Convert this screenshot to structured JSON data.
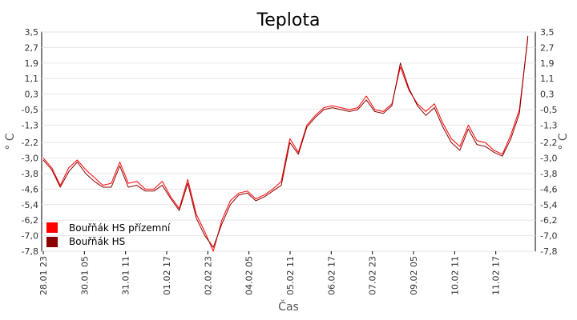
{
  "chart_data": {
    "type": "line",
    "title": "Teplota",
    "xlabel": "Čas",
    "ylabel_left": "° C",
    "ylabel_right": "° C",
    "ylim": [
      -7.8,
      3.5
    ],
    "yticks": [
      "3,5",
      "2,7",
      "1,9",
      "1,1",
      "0,3",
      "-0,5",
      "-1,3",
      "-2,2",
      "-3,0",
      "-3,8",
      "-4,6",
      "-5,4",
      "-6,2",
      "-7,0",
      "-7,8"
    ],
    "ytick_values": [
      3.5,
      2.7,
      1.9,
      1.1,
      0.3,
      -0.5,
      -1.3,
      -2.2,
      -3.0,
      -3.8,
      -4.6,
      -5.4,
      -6.2,
      -7.0,
      -7.8
    ],
    "xticks": [
      "28.01 23",
      "30.01 05",
      "31.01 11",
      "01.02 17",
      "02.02 23",
      "04.02 05",
      "05.02 11",
      "06.02 17",
      "07.02 23",
      "09.02 05",
      "10.02 11",
      "11.02 17"
    ],
    "grid": true,
    "legend_position": "bottom-left",
    "series": [
      {
        "name": "Bouřňák HS přízemní",
        "color": "#ff0000",
        "x": [
          0,
          0.2,
          0.4,
          0.6,
          0.8,
          1.0,
          1.2,
          1.4,
          1.6,
          1.8,
          2.0,
          2.2,
          2.4,
          2.6,
          2.8,
          3.0,
          3.2,
          3.4,
          3.6,
          3.8,
          4.0,
          4.2,
          4.4,
          4.6,
          4.8,
          5.0,
          5.2,
          5.4,
          5.6,
          5.8,
          6.0,
          6.2,
          6.4,
          6.6,
          6.8,
          7.0,
          7.2,
          7.4,
          7.6,
          7.8,
          8.0,
          8.2,
          8.4,
          8.6,
          8.8,
          9.0,
          9.2,
          9.4,
          9.6,
          9.8,
          10.0,
          10.2,
          10.4,
          10.6,
          10.8,
          11.0,
          11.2,
          11.4
        ],
        "values": [
          -3.0,
          -3.5,
          -4.4,
          -3.5,
          -3.1,
          -3.6,
          -4.0,
          -4.4,
          -4.3,
          -3.2,
          -4.3,
          -4.2,
          -4.6,
          -4.6,
          -4.2,
          -5.0,
          -5.6,
          -4.1,
          -5.9,
          -6.8,
          -7.8,
          -6.2,
          -5.2,
          -4.8,
          -4.7,
          -5.1,
          -4.9,
          -4.6,
          -4.2,
          -2.0,
          -2.7,
          -1.3,
          -0.8,
          -0.4,
          -0.3,
          -0.4,
          -0.5,
          -0.4,
          0.2,
          -0.5,
          -0.6,
          -0.2,
          1.7,
          0.5,
          -0.2,
          -0.6,
          -0.2,
          -1.2,
          -2.0,
          -2.4,
          -1.3,
          -2.1,
          -2.2,
          -2.6,
          -2.8,
          -1.8,
          -0.5,
          3.2
        ]
      },
      {
        "name": "Bouřňák HS",
        "color": "#8b0000",
        "x": [
          0,
          0.2,
          0.4,
          0.6,
          0.8,
          1.0,
          1.2,
          1.4,
          1.6,
          1.8,
          2.0,
          2.2,
          2.4,
          2.6,
          2.8,
          3.0,
          3.2,
          3.4,
          3.6,
          3.8,
          4.0,
          4.2,
          4.4,
          4.6,
          4.8,
          5.0,
          5.2,
          5.4,
          5.6,
          5.8,
          6.0,
          6.2,
          6.4,
          6.6,
          6.8,
          7.0,
          7.2,
          7.4,
          7.6,
          7.8,
          8.0,
          8.2,
          8.4,
          8.6,
          8.8,
          9.0,
          9.2,
          9.4,
          9.6,
          9.8,
          10.0,
          10.2,
          10.4,
          10.6,
          10.8,
          11.0,
          11.2,
          11.4
        ],
        "values": [
          -3.1,
          -3.6,
          -4.5,
          -3.7,
          -3.2,
          -3.8,
          -4.2,
          -4.5,
          -4.5,
          -3.4,
          -4.5,
          -4.4,
          -4.7,
          -4.7,
          -4.4,
          -5.1,
          -5.7,
          -4.3,
          -6.1,
          -7.0,
          -7.6,
          -6.4,
          -5.4,
          -4.9,
          -4.8,
          -5.2,
          -5.0,
          -4.7,
          -4.4,
          -2.2,
          -2.8,
          -1.4,
          -0.9,
          -0.5,
          -0.4,
          -0.5,
          -0.6,
          -0.5,
          0.0,
          -0.6,
          -0.7,
          -0.3,
          1.9,
          0.6,
          -0.3,
          -0.8,
          -0.4,
          -1.4,
          -2.2,
          -2.6,
          -1.5,
          -2.3,
          -2.4,
          -2.7,
          -2.9,
          -2.0,
          -0.7,
          3.3
        ]
      }
    ]
  }
}
